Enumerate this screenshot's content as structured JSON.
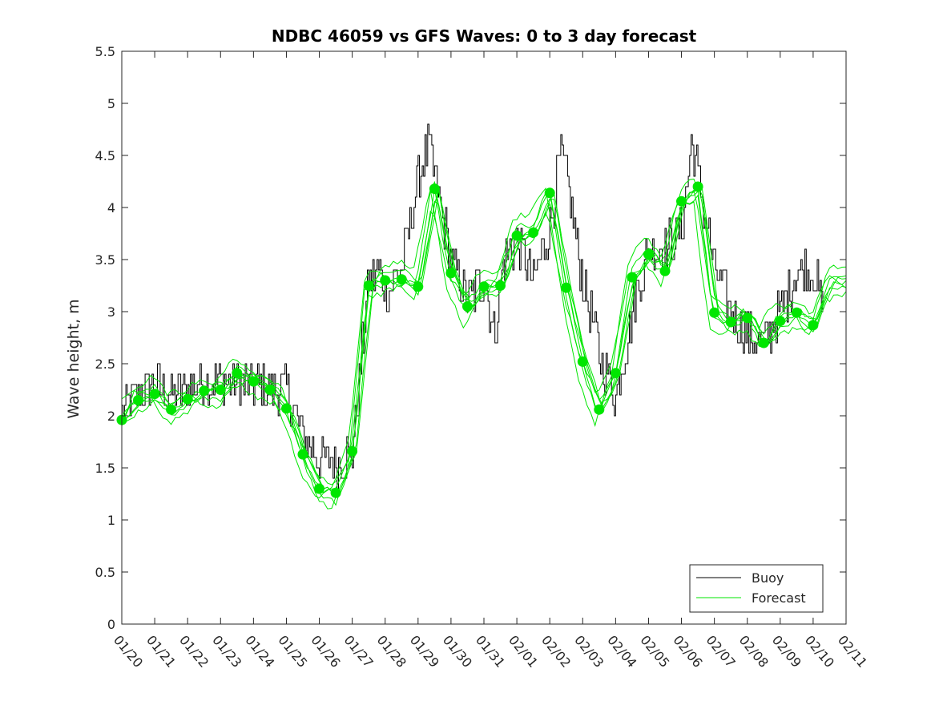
{
  "chart_data": {
    "type": "line",
    "title": "NDBC 46059 vs GFS Waves: 0 to 3 day forecast",
    "xlabel": "",
    "ylabel": "Wave height, m",
    "ylim": [
      0,
      5.5
    ],
    "yticks": [
      0,
      0.5,
      1,
      1.5,
      2,
      2.5,
      3,
      3.5,
      4,
      4.5,
      5,
      5.5
    ],
    "ytick_labels": [
      "0",
      "0.5",
      "1",
      "1.5",
      "2",
      "2.5",
      "3",
      "3.5",
      "4",
      "4.5",
      "5",
      "5.5"
    ],
    "x_unit": "days since 01/20",
    "xlim": [
      0,
      22
    ],
    "xtick_labels": [
      "01/20",
      "01/21",
      "01/22",
      "01/23",
      "01/24",
      "01/25",
      "01/26",
      "01/27",
      "01/28",
      "01/29",
      "01/30",
      "01/31",
      "02/01",
      "02/02",
      "02/03",
      "02/04",
      "02/05",
      "02/06",
      "02/07",
      "02/08",
      "02/09",
      "02/10",
      "02/11"
    ],
    "grid": false,
    "legend_position": "bottom-right",
    "legend": [
      "Buoy",
      "Forecast"
    ],
    "colors": {
      "buoy": "#000000",
      "forecast": "#00e600",
      "axis": "#262626"
    },
    "series": [
      {
        "name": "Buoy",
        "x": [
          0,
          0.5,
          1,
          1.5,
          2,
          2.5,
          3,
          3.5,
          4,
          4.5,
          5,
          5.5,
          6,
          6.5,
          7,
          7.5,
          7.8,
          8,
          8.5,
          9,
          9.3,
          9.5,
          10,
          10.5,
          11,
          11.3,
          11.6,
          12,
          12.5,
          13,
          13.3,
          13.5,
          14,
          14.5,
          15,
          15.5,
          16,
          16.5,
          17,
          17.3,
          17.5,
          18,
          18.5,
          19,
          19.5,
          20,
          20.5,
          21,
          21.3
        ],
        "values": [
          2.05,
          2.2,
          2.3,
          2.2,
          2.25,
          2.35,
          2.35,
          2.3,
          2.3,
          2.25,
          2.25,
          1.8,
          1.6,
          1.55,
          1.65,
          3.3,
          3.4,
          3.2,
          3.4,
          4.3,
          4.6,
          4.3,
          3.5,
          3.1,
          3.3,
          2.8,
          3.5,
          3.7,
          3.3,
          3.8,
          4.5,
          4.3,
          3.3,
          2.6,
          2.2,
          3.0,
          3.6,
          3.6,
          3.8,
          4.6,
          4.3,
          3.4,
          3.0,
          2.8,
          2.7,
          3.0,
          3.4,
          3.4,
          3.0
        ]
      },
      {
        "name": "Forecast",
        "x": [
          0,
          0.5,
          1,
          1.5,
          2,
          2.5,
          3,
          3.5,
          4,
          4.5,
          5,
          5.5,
          6,
          6.5,
          7,
          7.5,
          8,
          8.5,
          9,
          9.5,
          10,
          10.5,
          11,
          11.5,
          12,
          12.5,
          13,
          13.5,
          14,
          14.5,
          15,
          15.5,
          16,
          16.5,
          17,
          17.5,
          18,
          18.5,
          19,
          19.5,
          20,
          20.5,
          21,
          21.5,
          22
        ],
        "values": [
          1.96,
          2.15,
          2.21,
          2.06,
          2.16,
          2.24,
          2.25,
          2.41,
          2.33,
          2.25,
          2.07,
          1.63,
          1.3,
          1.26,
          1.66,
          3.25,
          3.3,
          3.31,
          3.24,
          4.18,
          3.37,
          3.05,
          3.24,
          3.25,
          3.73,
          3.76,
          4.14,
          3.23,
          2.52,
          2.06,
          2.41,
          3.33,
          3.55,
          3.39,
          4.06,
          4.2,
          2.99,
          2.9,
          2.94,
          2.7,
          2.91,
          2.99,
          2.87,
          3.3,
          3.3
        ]
      }
    ],
    "forecast_markers": {
      "x": [
        0,
        0.5,
        1,
        1.5,
        2,
        2.5,
        3,
        3.5,
        4,
        4.5,
        5,
        5.5,
        6,
        6.5,
        7,
        7.5,
        8,
        8.5,
        9,
        9.5,
        10,
        10.5,
        11,
        11.5,
        12,
        12.5,
        13,
        13.5,
        14,
        14.5,
        15,
        15.5,
        16,
        16.5,
        17,
        17.5,
        18,
        18.5,
        19,
        19.5,
        20,
        20.5,
        21
      ],
      "values": [
        1.96,
        2.15,
        2.21,
        2.06,
        2.16,
        2.24,
        2.25,
        2.41,
        2.33,
        2.25,
        2.07,
        1.63,
        1.3,
        1.26,
        1.66,
        3.25,
        3.3,
        3.31,
        3.24,
        4.18,
        3.37,
        3.05,
        3.24,
        3.25,
        3.73,
        3.76,
        4.14,
        3.23,
        2.52,
        2.06,
        2.41,
        3.33,
        3.55,
        3.39,
        4.06,
        4.2,
        2.99,
        2.9,
        2.94,
        2.7,
        2.91,
        2.99,
        2.87
      ]
    }
  }
}
